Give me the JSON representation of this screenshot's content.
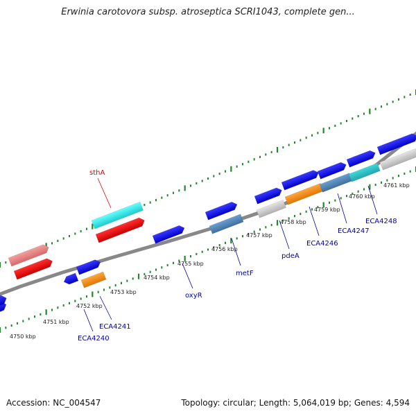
{
  "title": "Erwinia carotovora subsp. atroseptica SCRI1043, complete gen...",
  "footer": {
    "accession": "Accession: NC_004547",
    "summary": "Topology: circular; Length: 5,064,019 bp; Genes: 4,594"
  },
  "colors": {
    "backbone": "#888888",
    "tick": "#22862a",
    "gene_label": "#0000aa",
    "highlight_label": "#dd0000",
    "scale_label": "#222222"
  },
  "scale_labels": [
    "4750 kbp",
    "4751 kbp",
    "4752 kbp",
    "4753 kbp",
    "4754 kbp",
    "4755 kbp",
    "4756 kbp",
    "4757 kbp",
    "4758 kbp",
    "4759 kbp",
    "4760 kbp",
    "4761 kbp"
  ],
  "gene_labels": [
    {
      "text": "sthA",
      "highlight": true
    },
    {
      "text": "ECA4240",
      "highlight": false
    },
    {
      "text": "ECA4241",
      "highlight": false
    },
    {
      "text": "oxyR",
      "highlight": false
    },
    {
      "text": "metF",
      "highlight": false
    },
    {
      "text": "pdeA",
      "highlight": false
    },
    {
      "text": "ECA4246",
      "highlight": false
    },
    {
      "text": "ECA4247",
      "highlight": false
    },
    {
      "text": "ECA4248",
      "highlight": false
    }
  ]
}
